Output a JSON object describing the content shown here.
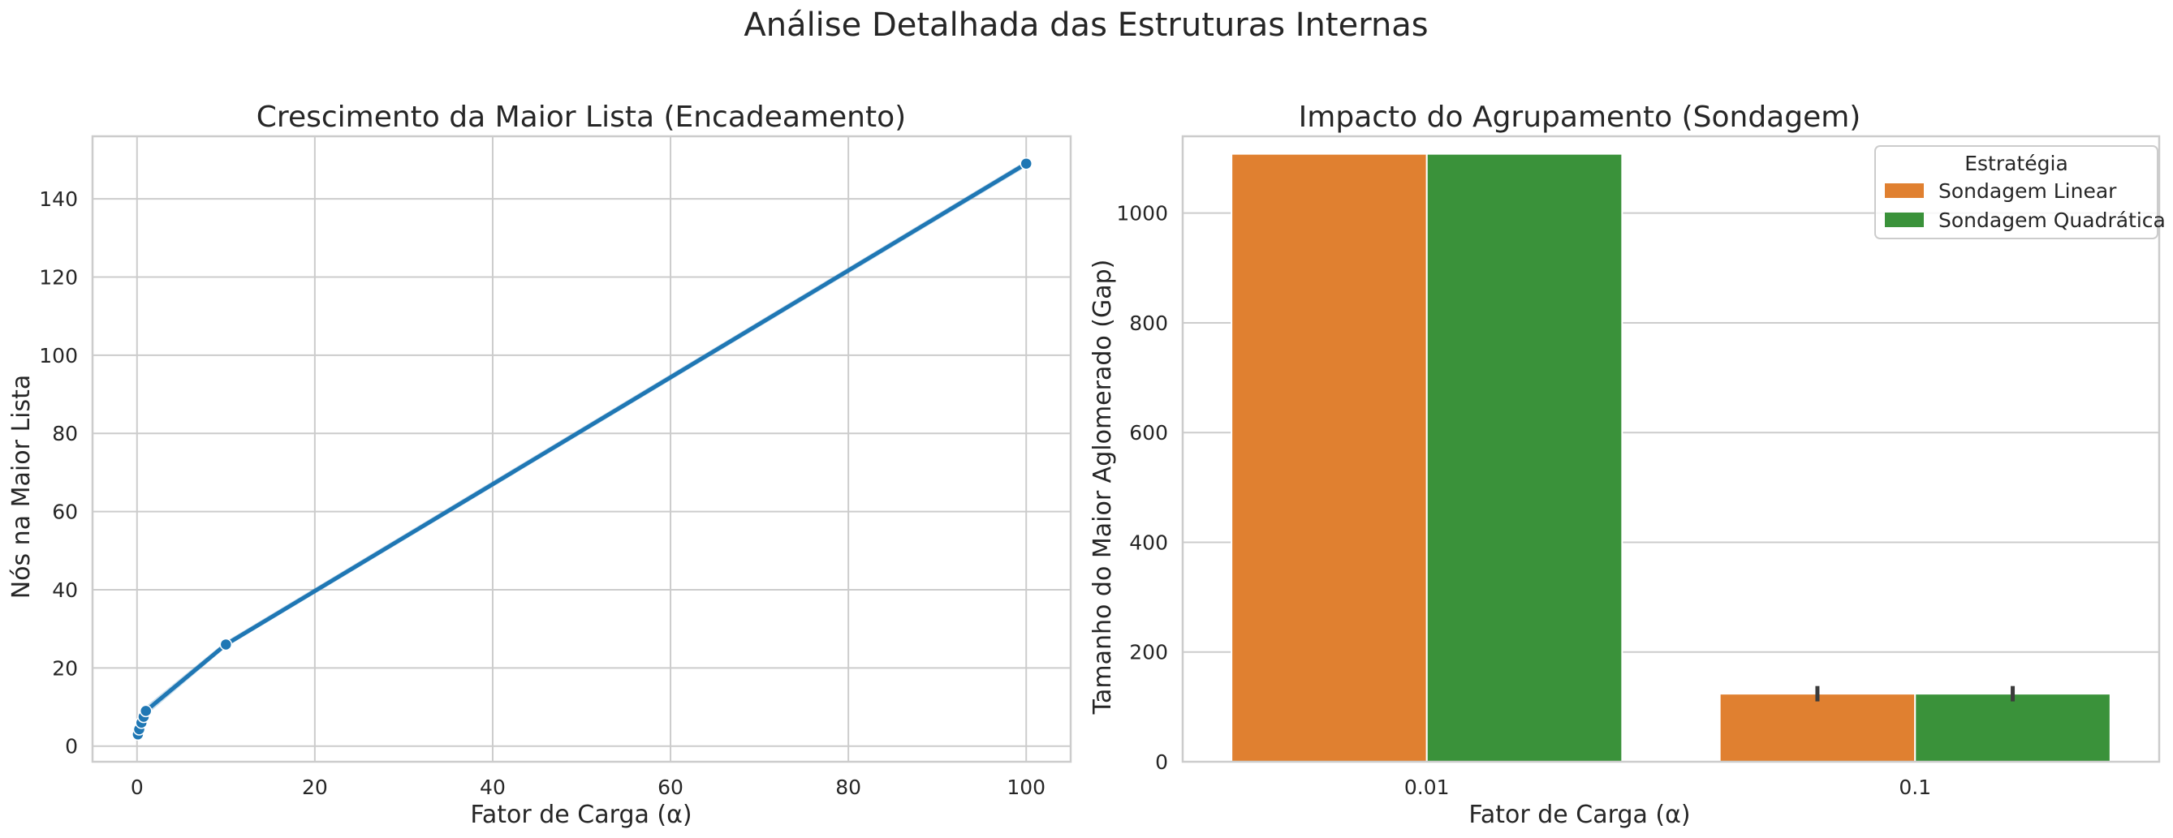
{
  "figure_title": "Análise Detalhada das Estruturas Internas",
  "chart_data": [
    {
      "type": "line",
      "title": "Crescimento da Maior Lista (Encadeamento)",
      "xlabel": "Fator de Carga (α)",
      "ylabel": "Nós na Maior Lista",
      "xlim": [
        -5,
        105
      ],
      "ylim": [
        -4,
        156
      ],
      "xticks": [
        0,
        20,
        40,
        60,
        80,
        100
      ],
      "yticks": [
        0,
        20,
        40,
        60,
        80,
        100,
        120,
        140
      ],
      "grid": true,
      "color": "#1f77b4",
      "x": [
        0.1,
        0.25,
        0.5,
        0.75,
        1,
        10,
        100
      ],
      "y": [
        3,
        4.3,
        6,
        7.5,
        9,
        26,
        149
      ],
      "ci_lower": [
        2.5,
        3.6,
        5.2,
        6.4,
        7.8,
        25.3,
        148.2
      ],
      "ci_upper": [
        3.6,
        5.0,
        6.9,
        8.6,
        10.2,
        26.8,
        149.8
      ]
    },
    {
      "type": "bar",
      "title": "Impacto do Agrupamento (Sondagem)",
      "xlabel": "Fator de Carga (α)",
      "ylabel": "Tamanho do Maior Aglomerado (Gap)",
      "categories": [
        "0.01",
        "0.1"
      ],
      "ylim": [
        0,
        1140
      ],
      "yticks": [
        0,
        200,
        400,
        600,
        800,
        1000
      ],
      "grid": true,
      "legend": {
        "title": "Estratégia",
        "position": "top-right"
      },
      "series": [
        {
          "name": "Sondagem Linear",
          "color": "#e08030",
          "values": [
            1108,
            124
          ],
          "error": [
            0,
            14
          ]
        },
        {
          "name": "Sondagem Quadrática",
          "color": "#3a923a",
          "values": [
            1108,
            124
          ],
          "error": [
            0,
            14
          ]
        }
      ]
    }
  ]
}
